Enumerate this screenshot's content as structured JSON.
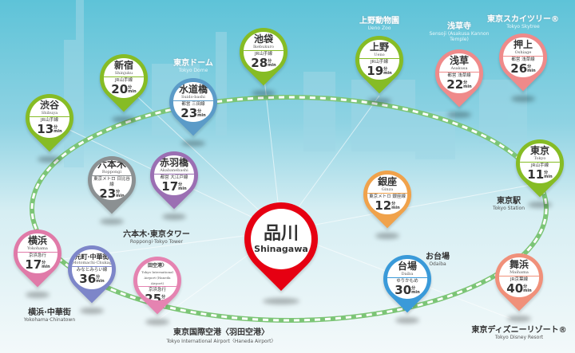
{
  "colors": {
    "ring": "#7cc576",
    "jr_green": "#86bc25",
    "toei_blue": "#5b9bc8",
    "pink": "#ef8a8a",
    "gray": "#8b9092",
    "purple": "#9b6fb3",
    "yokohama_pink": "#e07aa8",
    "lavender": "#7d86c9",
    "haneda_pink": "#e583b1",
    "red": "#e60012",
    "orange": "#f0a24b",
    "blue": "#3a9ad9",
    "salmon": "#f0907a"
  },
  "center": {
    "jp": "品川",
    "en": "Shinagawa"
  },
  "min_unit": {
    "jp": "分",
    "en": "min"
  },
  "pins": [
    {
      "id": "shibuya",
      "jp": "渋谷",
      "en": "Shibuya",
      "line": "JR山手線",
      "minutes": "13",
      "color": "#86bc25"
    },
    {
      "id": "shinjuku",
      "jp": "新宿",
      "en": "Shinjuku",
      "line": "JR山手線",
      "minutes": "20",
      "color": "#86bc25"
    },
    {
      "id": "suidobashi",
      "jp": "水道橋",
      "en": "Suido-bashi",
      "line": "都営 三田線",
      "minutes": "23",
      "color": "#5b9bc8"
    },
    {
      "id": "ikebukuro",
      "jp": "池袋",
      "en": "Ikebukuro",
      "line": "JR山手線",
      "minutes": "28",
      "color": "#86bc25"
    },
    {
      "id": "ueno",
      "jp": "上野",
      "en": "Ueno",
      "line": "JR山手線",
      "minutes": "19",
      "color": "#86bc25"
    },
    {
      "id": "asakusa",
      "jp": "浅草",
      "en": "Asakusa",
      "line": "都営 浅草線",
      "minutes": "22",
      "color": "#ef8a8a"
    },
    {
      "id": "oshiage",
      "jp": "押上",
      "en": "Oshiage",
      "line": "都営 浅草線",
      "minutes": "26",
      "color": "#ef8a8a"
    },
    {
      "id": "tokyo",
      "jp": "東京",
      "en": "Tokyo",
      "line": "JR山手線",
      "minutes": "11",
      "color": "#86bc25"
    },
    {
      "id": "roppongi",
      "jp": "六本木",
      "en": "Roppongi",
      "line": "東京メトロ 日比谷線",
      "minutes": "23",
      "color": "#8b9092"
    },
    {
      "id": "akabanebashi",
      "jp": "赤羽橋",
      "en": "Akabanebashi",
      "line": "都営 大江戸線",
      "minutes": "17",
      "color": "#9b6fb3"
    },
    {
      "id": "yokohama",
      "jp": "横浜",
      "en": "Yokohama",
      "line": "京浜急行",
      "minutes": "17",
      "color": "#e07aa8"
    },
    {
      "id": "motomachi",
      "jp": "元町·中華街",
      "en": "Motomachi·Chukagai",
      "line": "みなとみらい線",
      "minutes": "36",
      "color": "#7d86c9"
    },
    {
      "id": "haneda",
      "jp": "東京国際空港〈羽田空港〉",
      "en": "Tokyo International Airport (Haneda Airport)",
      "line": "京浜急行",
      "minutes": "25",
      "color": "#e583b1"
    },
    {
      "id": "ginza",
      "jp": "銀座",
      "en": "Ginza",
      "line": "東京メトロ 銀座線",
      "minutes": "12",
      "color": "#f0a24b"
    },
    {
      "id": "daiba",
      "jp": "台場",
      "en": "Daiba",
      "line": "ゆりかもめ",
      "minutes": "30",
      "color": "#3a9ad9"
    },
    {
      "id": "maihama",
      "jp": "舞浜",
      "en": "Maihama",
      "line": "JR京葉線",
      "minutes": "40",
      "color": "#f0907a"
    }
  ],
  "landmarks": [
    {
      "id": "tokyo-dome",
      "jp": "東京ドーム",
      "en": "Tokyo Dome",
      "style": "w"
    },
    {
      "id": "ueno-zoo",
      "jp": "上野動物園",
      "en": "Ueno Zoo",
      "style": "w"
    },
    {
      "id": "sensoji",
      "jp": "浅草寺",
      "en": "Sensoji (Asakusa Kannon Temple)",
      "style": "w"
    },
    {
      "id": "skytree",
      "jp": "東京スカイツリー®",
      "en": "Tokyo Skytree",
      "style": "w"
    },
    {
      "id": "tokyo-station",
      "jp": "東京駅",
      "en": "Tokyo Station",
      "style": "d"
    },
    {
      "id": "roppongi-tower",
      "jp": "六本木·東京タワー",
      "en": "Roppongi·Tokyo Tower",
      "style": "d"
    },
    {
      "id": "yokohama-chinatown",
      "jp": "横浜·中華街",
      "en": "Yokohama·Chinatown",
      "style": "d"
    },
    {
      "id": "haneda-airport",
      "jp": "東京国際空港〈羽田空港〉",
      "en": "Tokyo International Airport〈Haneda Airport〉",
      "style": "d"
    },
    {
      "id": "odaiba",
      "jp": "お台場",
      "en": "Odaiba",
      "style": "d"
    },
    {
      "id": "disney",
      "jp": "東京ディズニーリゾート®",
      "en": "Tokyo Disney Resort",
      "style": "d"
    }
  ]
}
